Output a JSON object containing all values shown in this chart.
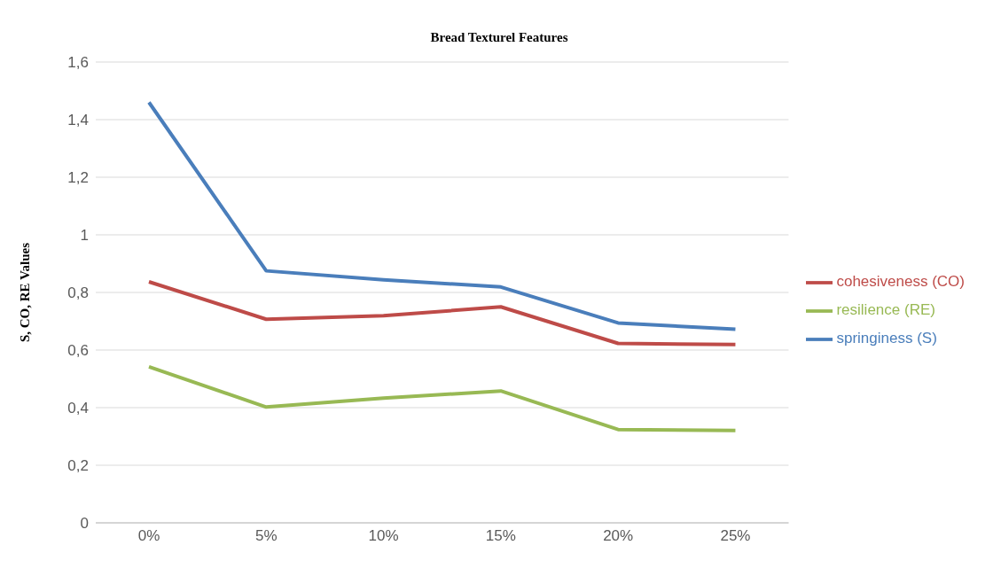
{
  "chart_data": {
    "type": "line",
    "title": "Bread Texturel Features",
    "ylabel": "S, CO, RE Values",
    "categories": [
      "0%",
      "5%",
      "10%",
      "15%",
      "20%",
      "25%"
    ],
    "series": [
      {
        "name": "springiness (S)",
        "color": "#4a7ebb",
        "values": [
          1.46,
          0.875,
          0.844,
          0.819,
          0.694,
          0.672
        ]
      },
      {
        "name": "cohesiveness (CO)",
        "color": "#be4b48",
        "values": [
          0.837,
          0.707,
          0.719,
          0.75,
          0.623,
          0.619
        ]
      },
      {
        "name": "resilience (RE)",
        "color": "#98b954",
        "values": [
          0.542,
          0.402,
          0.433,
          0.458,
          0.324,
          0.321
        ]
      }
    ],
    "ylim": [
      0,
      1.6
    ],
    "yticks": [
      0,
      {
        "value": 0.2,
        "label": "0,2"
      },
      {
        "value": 0.4,
        "label": "0,4"
      },
      {
        "value": 0.6,
        "label": "0,6"
      },
      {
        "value": 0.8,
        "label": "0,8"
      },
      1,
      {
        "value": 1.2,
        "label": "1,2"
      },
      {
        "value": 1.4,
        "label": "1,4"
      },
      {
        "value": 1.6,
        "label": "1,6"
      }
    ],
    "grid": "y",
    "legend": "right",
    "marker": "none",
    "line_style": "solid"
  }
}
